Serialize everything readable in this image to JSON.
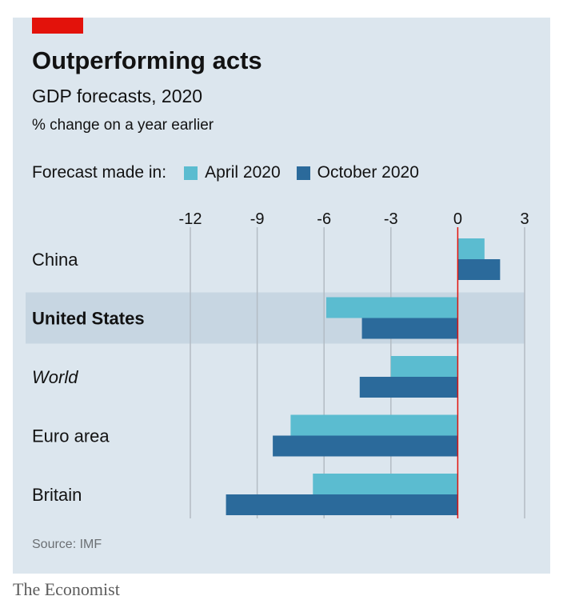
{
  "header": {
    "title": "Outperforming acts",
    "subtitle": "GDP forecasts, 2020",
    "units": "% change on a year earlier"
  },
  "legend": {
    "title": "Forecast made in:",
    "entries": [
      {
        "label": "April 2020",
        "color": "#5bbcd0"
      },
      {
        "label": "October 2020",
        "color": "#2b6a9b"
      }
    ]
  },
  "chart_data": {
    "type": "bar",
    "orientation": "horizontal",
    "categories": [
      "China",
      "United States",
      "World",
      "Euro area",
      "Britain"
    ],
    "highlighted_category": "United States",
    "emphasis": {
      "United States": "bold",
      "World": "italic"
    },
    "series": [
      {
        "name": "April 2020",
        "color": "#5bbcd0",
        "values": [
          1.2,
          -5.9,
          -3.0,
          -7.5,
          -6.5
        ]
      },
      {
        "name": "October 2020",
        "color": "#2b6a9b",
        "values": [
          1.9,
          -4.3,
          -4.4,
          -8.3,
          -10.4
        ]
      }
    ],
    "xlim": [
      -12,
      3
    ],
    "xticks": [
      -12,
      -9,
      -6,
      -3,
      0,
      3
    ],
    "xtick_labels": [
      "-12",
      "-9",
      "-6",
      "-3",
      "0",
      "3"
    ],
    "grid": true,
    "zero_line_color": "#e3120b",
    "highlight_color": "#c7d6e2",
    "gridline_color": "#b3bcc4"
  },
  "footer": {
    "source": "Source: IMF",
    "brand": "The Economist"
  }
}
